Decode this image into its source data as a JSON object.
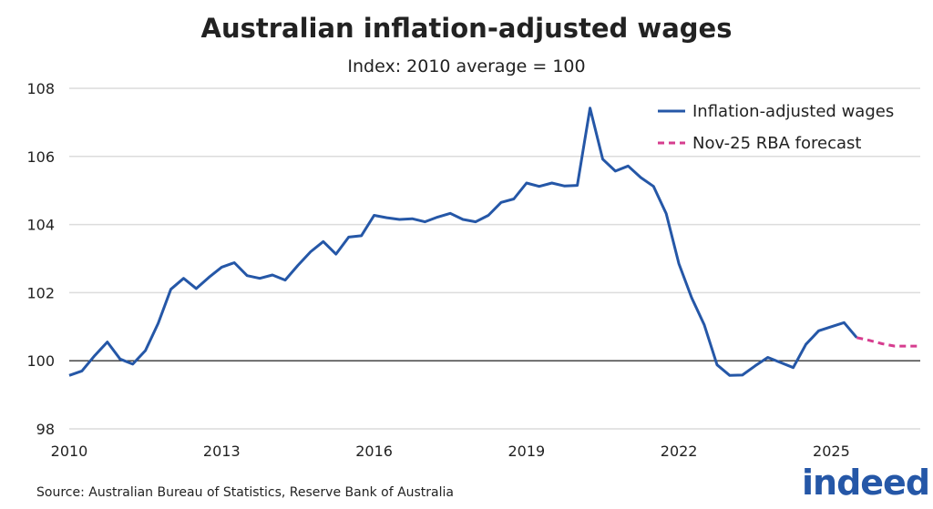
{
  "chart_data": {
    "type": "line",
    "title": "Australian inflation-adjusted wages",
    "subtitle": "Index: 2010 average = 100",
    "xlabel": "",
    "ylabel": "",
    "xlim": [
      2010,
      2026.75
    ],
    "ylim": [
      98,
      108
    ],
    "x_ticks": [
      "2010",
      "2013",
      "2016",
      "2019",
      "2022",
      "2025"
    ],
    "y_ticks": [
      "98",
      "100",
      "102",
      "104",
      "106",
      "108"
    ],
    "grid": "horizontal",
    "reference_line": 100,
    "legend_position": "top-right",
    "x_frequency": "quarterly, starting 2010",
    "series": [
      {
        "name": "Inflation-adjusted wages",
        "color": "#2557a7",
        "style": "solid",
        "start": 2010,
        "values": [
          99.57,
          99.7,
          100.15,
          100.55,
          100.05,
          99.9,
          100.3,
          101.1,
          102.1,
          102.42,
          102.12,
          102.45,
          102.75,
          102.88,
          102.5,
          102.42,
          102.52,
          102.37,
          102.8,
          103.2,
          103.5,
          103.13,
          103.63,
          103.67,
          104.27,
          104.2,
          104.15,
          104.17,
          104.08,
          104.22,
          104.33,
          104.15,
          104.08,
          104.27,
          104.65,
          104.75,
          105.22,
          105.12,
          105.22,
          105.13,
          105.15,
          107.42,
          105.92,
          105.57,
          105.72,
          105.38,
          105.12,
          104.32,
          102.85,
          101.85,
          101.05,
          99.88,
          99.57,
          99.58,
          99.85,
          100.1,
          99.95,
          99.8,
          100.48,
          100.88,
          101.0,
          101.12,
          100.68
        ]
      },
      {
        "name": "Nov-25 RBA forecast",
        "color": "#d63d8f",
        "style": "dashed",
        "start": 2025.5,
        "values": [
          100.68,
          100.6,
          100.5,
          100.43,
          100.43,
          100.43
        ]
      }
    ]
  },
  "source": "Source: Australian Bureau of Statistics, Reserve Bank of Australia",
  "logo": "indeed"
}
